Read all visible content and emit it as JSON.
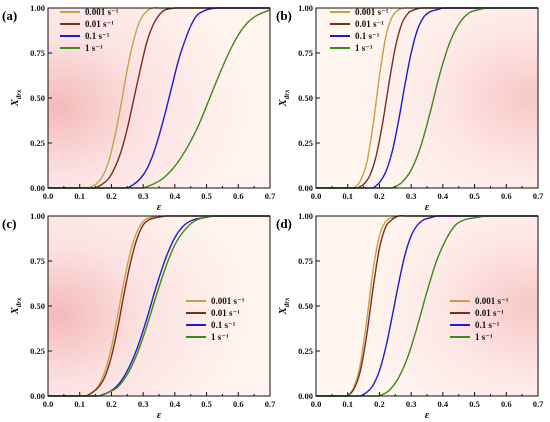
{
  "chart_data": [
    {
      "type": "line",
      "panel": "(a)",
      "xlabel": "ε",
      "ylabel": "X_drx",
      "xlim": [
        0,
        0.7
      ],
      "ylim": [
        0,
        1
      ],
      "xticks": [
        "0.0",
        "0.1",
        "0.2",
        "0.3",
        "0.4",
        "0.5",
        "0.6",
        "0.7"
      ],
      "yticks": [
        "0.00",
        "0.25",
        "0.50",
        "0.75",
        "1.00"
      ],
      "legend_position": "top-left",
      "series": [
        {
          "name": "0.001 s⁻¹",
          "color": "#c8a046",
          "x": [
            0.13,
            0.15,
            0.17,
            0.19,
            0.21,
            0.23,
            0.25,
            0.27,
            0.29,
            0.31,
            0.33,
            0.35
          ],
          "y": [
            0,
            0.02,
            0.06,
            0.14,
            0.28,
            0.46,
            0.66,
            0.82,
            0.93,
            0.98,
            1,
            1
          ]
        },
        {
          "name": "0.01 s⁻¹",
          "color": "#7a2e1a",
          "x": [
            0.15,
            0.17,
            0.19,
            0.21,
            0.23,
            0.25,
            0.27,
            0.29,
            0.31,
            0.33,
            0.35,
            0.37,
            0.4
          ],
          "y": [
            0,
            0.02,
            0.05,
            0.11,
            0.2,
            0.33,
            0.49,
            0.65,
            0.8,
            0.9,
            0.96,
            0.99,
            1
          ]
        },
        {
          "name": "0.1 s⁻¹",
          "color": "#1c1ccc",
          "x": [
            0.25,
            0.27,
            0.29,
            0.31,
            0.33,
            0.35,
            0.37,
            0.39,
            0.41,
            0.43,
            0.45,
            0.47,
            0.5,
            0.53
          ],
          "y": [
            0,
            0.02,
            0.05,
            0.1,
            0.18,
            0.29,
            0.42,
            0.56,
            0.7,
            0.81,
            0.9,
            0.96,
            0.99,
            1
          ]
        },
        {
          "name": "1 s⁻¹",
          "color": "#3a8a1a",
          "x": [
            0.3,
            0.33,
            0.36,
            0.39,
            0.42,
            0.45,
            0.48,
            0.51,
            0.54,
            0.57,
            0.6,
            0.63,
            0.66,
            0.7
          ],
          "y": [
            0,
            0.02,
            0.05,
            0.1,
            0.17,
            0.26,
            0.37,
            0.5,
            0.63,
            0.75,
            0.85,
            0.92,
            0.96,
            0.99
          ]
        }
      ]
    },
    {
      "type": "line",
      "panel": "(b)",
      "xlabel": "ε",
      "ylabel": "X_drx",
      "xlim": [
        0,
        0.7
      ],
      "ylim": [
        0,
        1
      ],
      "xticks": [
        "0.0",
        "0.1",
        "0.2",
        "0.3",
        "0.4",
        "0.5",
        "0.6",
        "0.7"
      ],
      "yticks": [
        "0.00",
        "0.25",
        "0.50",
        "0.75",
        "1.00"
      ],
      "legend_position": "top-left",
      "series": [
        {
          "name": "0.001 s⁻¹",
          "color": "#c8a046",
          "x": [
            0.12,
            0.14,
            0.16,
            0.18,
            0.2,
            0.22,
            0.24,
            0.26,
            0.28
          ],
          "y": [
            0,
            0.04,
            0.14,
            0.35,
            0.62,
            0.84,
            0.95,
            0.99,
            1
          ]
        },
        {
          "name": "0.01 s⁻¹",
          "color": "#7a2e1a",
          "x": [
            0.13,
            0.15,
            0.17,
            0.19,
            0.21,
            0.23,
            0.25,
            0.27,
            0.29,
            0.31,
            0.33
          ],
          "y": [
            0,
            0.02,
            0.07,
            0.18,
            0.36,
            0.58,
            0.78,
            0.91,
            0.97,
            0.99,
            1
          ]
        },
        {
          "name": "0.1 s⁻¹",
          "color": "#1c1ccc",
          "x": [
            0.18,
            0.2,
            0.22,
            0.24,
            0.26,
            0.28,
            0.3,
            0.32,
            0.34,
            0.36,
            0.38,
            0.4
          ],
          "y": [
            0,
            0.03,
            0.09,
            0.2,
            0.37,
            0.57,
            0.75,
            0.88,
            0.95,
            0.98,
            0.99,
            1
          ]
        },
        {
          "name": "1 s⁻¹",
          "color": "#3a8a1a",
          "x": [
            0.24,
            0.27,
            0.3,
            0.33,
            0.36,
            0.39,
            0.42,
            0.45,
            0.48,
            0.51,
            0.54,
            0.57
          ],
          "y": [
            0,
            0.03,
            0.1,
            0.23,
            0.42,
            0.63,
            0.8,
            0.91,
            0.97,
            0.99,
            1,
            1
          ]
        }
      ]
    },
    {
      "type": "line",
      "panel": "(c)",
      "xlabel": "ε",
      "ylabel": "X_drx",
      "xlim": [
        0,
        0.7
      ],
      "ylim": [
        0,
        1
      ],
      "xticks": [
        "0.0",
        "0.1",
        "0.2",
        "0.3",
        "0.4",
        "0.5",
        "0.6",
        "0.7"
      ],
      "yticks": [
        "0.00",
        "0.25",
        "0.50",
        "0.75",
        "1.00"
      ],
      "legend_position": "center-right",
      "series": [
        {
          "name": "0.001 s⁻¹",
          "color": "#c8a046",
          "x": [
            0.12,
            0.14,
            0.16,
            0.18,
            0.2,
            0.22,
            0.24,
            0.26,
            0.28,
            0.3,
            0.32,
            0.35
          ],
          "y": [
            0,
            0.02,
            0.06,
            0.14,
            0.27,
            0.45,
            0.64,
            0.8,
            0.91,
            0.97,
            0.99,
            1
          ]
        },
        {
          "name": "0.01 s⁻¹",
          "color": "#7a2e1a",
          "x": [
            0.12,
            0.14,
            0.16,
            0.18,
            0.2,
            0.22,
            0.24,
            0.26,
            0.28,
            0.3,
            0.32,
            0.34,
            0.37
          ],
          "y": [
            0,
            0.02,
            0.05,
            0.11,
            0.22,
            0.38,
            0.57,
            0.74,
            0.87,
            0.95,
            0.98,
            0.99,
            1
          ]
        },
        {
          "name": "0.1 s⁻¹",
          "color": "#1c1ccc",
          "x": [
            0.16,
            0.19,
            0.22,
            0.25,
            0.28,
            0.31,
            0.34,
            0.37,
            0.4,
            0.43,
            0.46,
            0.49,
            0.52
          ],
          "y": [
            0,
            0.02,
            0.06,
            0.14,
            0.26,
            0.42,
            0.6,
            0.76,
            0.88,
            0.95,
            0.98,
            0.99,
            1
          ]
        },
        {
          "name": "1 s⁻¹",
          "color": "#3a8a1a",
          "x": [
            0.16,
            0.19,
            0.22,
            0.25,
            0.28,
            0.31,
            0.34,
            0.37,
            0.4,
            0.43,
            0.46,
            0.49,
            0.52,
            0.55
          ],
          "y": [
            0,
            0.02,
            0.05,
            0.12,
            0.23,
            0.38,
            0.55,
            0.71,
            0.84,
            0.92,
            0.97,
            0.99,
            1,
            1
          ]
        }
      ]
    },
    {
      "type": "line",
      "panel": "(d)",
      "xlabel": "ε",
      "ylabel": "X_drx",
      "xlim": [
        0,
        0.7
      ],
      "ylim": [
        0,
        1
      ],
      "xticks": [
        "0.0",
        "0.1",
        "0.2",
        "0.3",
        "0.4",
        "0.5",
        "0.6",
        "0.7"
      ],
      "yticks": [
        "0.00",
        "0.25",
        "0.50",
        "0.75",
        "1.00"
      ],
      "legend_position": "center-right",
      "series": [
        {
          "name": "0.001 s⁻¹",
          "color": "#c8a046",
          "x": [
            0.1,
            0.12,
            0.14,
            0.16,
            0.18,
            0.2,
            0.22,
            0.24,
            0.26
          ],
          "y": [
            0,
            0.05,
            0.18,
            0.42,
            0.7,
            0.89,
            0.97,
            0.99,
            1
          ]
        },
        {
          "name": "0.01 s⁻¹",
          "color": "#7a2e1a",
          "x": [
            0.1,
            0.12,
            0.14,
            0.16,
            0.18,
            0.2,
            0.22,
            0.24,
            0.26,
            0.28
          ],
          "y": [
            0,
            0.04,
            0.14,
            0.34,
            0.6,
            0.82,
            0.94,
            0.98,
            1,
            1
          ]
        },
        {
          "name": "0.1 s⁻¹",
          "color": "#1c1ccc",
          "x": [
            0.14,
            0.16,
            0.18,
            0.2,
            0.22,
            0.24,
            0.26,
            0.28,
            0.3,
            0.32,
            0.34,
            0.36,
            0.38
          ],
          "y": [
            0,
            0.02,
            0.06,
            0.14,
            0.27,
            0.44,
            0.62,
            0.78,
            0.89,
            0.95,
            0.98,
            0.99,
            1
          ]
        },
        {
          "name": "1 s⁻¹",
          "color": "#3a8a1a",
          "x": [
            0.2,
            0.23,
            0.26,
            0.29,
            0.32,
            0.35,
            0.38,
            0.41,
            0.44,
            0.47,
            0.5,
            0.53
          ],
          "y": [
            0,
            0.03,
            0.1,
            0.22,
            0.39,
            0.58,
            0.75,
            0.87,
            0.95,
            0.98,
            0.99,
            1
          ]
        }
      ]
    }
  ]
}
